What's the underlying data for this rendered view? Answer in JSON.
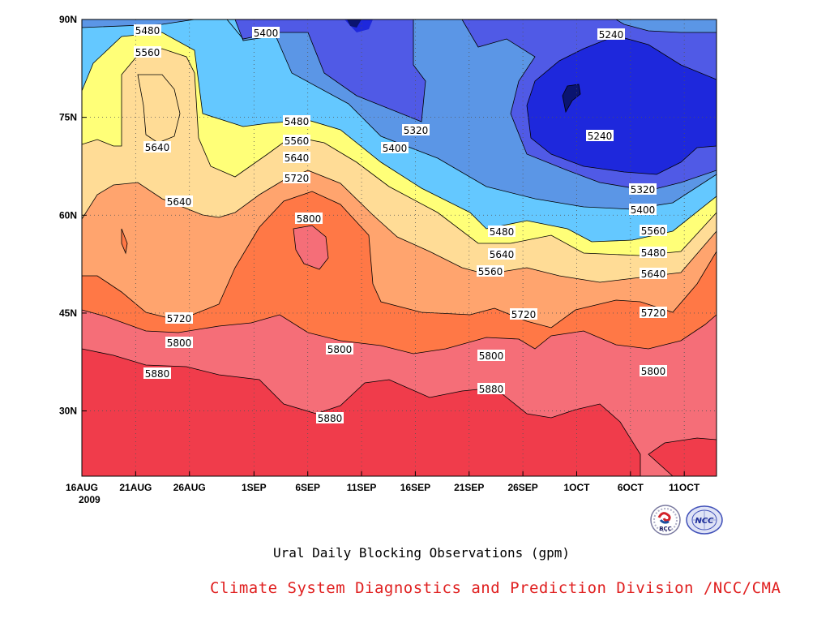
{
  "chart_data": {
    "type": "contour",
    "title": "Ural Daily Blocking Observations (gpm)",
    "xlabel": "",
    "ylabel": "",
    "x_ticks": [
      "16AUG",
      "21AUG",
      "26AUG",
      "1SEP",
      "6SEP",
      "11SEP",
      "16SEP",
      "21SEP",
      "26SEP",
      "1OCT",
      "6OCT",
      "11OCT"
    ],
    "x_year_label": "2009",
    "x_range": [
      "2009-08-16",
      "2009-10-14"
    ],
    "y_ticks": [
      "30N",
      "45N",
      "60N",
      "75N",
      "90N"
    ],
    "y_range": [
      20,
      90
    ],
    "contour_levels": [
      5240,
      5320,
      5400,
      5480,
      5560,
      5640,
      5720,
      5800,
      5880
    ],
    "contour_labels": [
      "5480",
      "5400",
      "5240",
      "5560",
      "5640",
      "5320",
      "5240",
      "5480",
      "5400",
      "5560",
      "5640",
      "5720",
      "5320",
      "5640",
      "5800",
      "5400",
      "5480",
      "5560",
      "5640",
      "5480",
      "5560",
      "5640",
      "5720",
      "5720",
      "5720",
      "5800",
      "5800",
      "5800",
      "5800",
      "5880",
      "5880",
      "5880"
    ],
    "fill_colors": {
      "below_5240": "#0a1470",
      "5240_5320": "#1e28dc",
      "5320_5400": "#505ae6",
      "5400_5480": "#5b96e6",
      "5480_5560": "#64c8ff",
      "5560_5640": "#ffff78",
      "5640_5720": "#ffdc96",
      "5720_5800": "#ffa46e",
      "5800_5880": "#ff7846",
      "5880_5960": "#f56e78",
      "above_5960": "#f03c4b"
    },
    "grid": true,
    "legend": "none"
  },
  "footer": "Climate System Diagnostics and Prediction Division /NCC/CMA",
  "logos": [
    {
      "icon": "bcc-logo-icon",
      "text": "BCC"
    },
    {
      "icon": "ncc-logo-icon",
      "text": "NCC"
    }
  ]
}
